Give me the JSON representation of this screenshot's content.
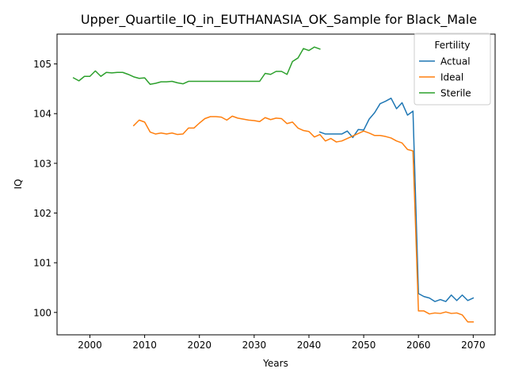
{
  "chart_data": {
    "type": "line",
    "title": "Upper_Quartile_IQ_in_EUTHANASIA_OK_Sample for Black_Male",
    "xlabel": "Years",
    "ylabel": "IQ",
    "xlim": [
      1994,
      2074
    ],
    "ylim": [
      99.55,
      105.6
    ],
    "x_ticks": [
      2000,
      2010,
      2020,
      2030,
      2040,
      2050,
      2060,
      2070
    ],
    "y_ticks": [
      100,
      101,
      102,
      103,
      104,
      105
    ],
    "grid": false,
    "legend": {
      "title": "Fertility",
      "placement": "top-right"
    },
    "series": [
      {
        "name": "Actual",
        "color": "#1f77b4",
        "x": [
          2042,
          2043,
          2044,
          2045,
          2046,
          2047,
          2048,
          2049,
          2050,
          2051,
          2052,
          2053,
          2054,
          2055,
          2056,
          2057,
          2058,
          2059,
          2060,
          2061,
          2062,
          2063,
          2064,
          2065,
          2066,
          2067,
          2068,
          2069,
          2070
        ],
        "y": [
          103.63,
          103.59,
          103.59,
          103.59,
          103.59,
          103.65,
          103.52,
          103.68,
          103.67,
          103.89,
          104.02,
          104.2,
          104.25,
          104.31,
          104.1,
          104.22,
          103.97,
          104.05,
          100.38,
          100.32,
          100.29,
          100.22,
          100.26,
          100.22,
          100.35,
          100.24,
          100.35,
          100.24,
          100.29
        ]
      },
      {
        "name": "Ideal",
        "color": "#ff7f0e",
        "x": [
          2008,
          2009,
          2010,
          2011,
          2012,
          2013,
          2014,
          2015,
          2016,
          2017,
          2018,
          2019,
          2020,
          2021,
          2022,
          2023,
          2024,
          2025,
          2026,
          2027,
          2028,
          2029,
          2030,
          2031,
          2032,
          2033,
          2034,
          2035,
          2036,
          2037,
          2038,
          2039,
          2040,
          2041,
          2042,
          2043,
          2044,
          2045,
          2046,
          2047,
          2048,
          2049,
          2050,
          2051,
          2052,
          2053,
          2054,
          2055,
          2056,
          2057,
          2058,
          2059,
          2060,
          2061,
          2062,
          2063,
          2064,
          2065,
          2066,
          2067,
          2068,
          2069,
          2070
        ],
        "y": [
          103.76,
          103.87,
          103.83,
          103.63,
          103.59,
          103.61,
          103.59,
          103.61,
          103.58,
          103.59,
          103.71,
          103.71,
          103.81,
          103.9,
          103.94,
          103.94,
          103.93,
          103.87,
          103.95,
          103.91,
          103.89,
          103.87,
          103.86,
          103.84,
          103.92,
          103.88,
          103.91,
          103.9,
          103.8,
          103.83,
          103.71,
          103.66,
          103.64,
          103.53,
          103.58,
          103.45,
          103.5,
          103.43,
          103.45,
          103.5,
          103.55,
          103.6,
          103.65,
          103.61,
          103.56,
          103.56,
          103.54,
          103.51,
          103.45,
          103.41,
          103.28,
          103.25,
          100.03,
          100.03,
          99.97,
          99.99,
          99.98,
          100.01,
          99.98,
          99.99,
          99.95,
          99.81,
          99.81
        ]
      },
      {
        "name": "Sterile",
        "color": "#2ca02c",
        "x": [
          1997,
          1998,
          1999,
          2000,
          2001,
          2002,
          2003,
          2004,
          2005,
          2006,
          2007,
          2008,
          2009,
          2010,
          2011,
          2012,
          2013,
          2014,
          2015,
          2016,
          2017,
          2018,
          2019,
          2020,
          2021,
          2022,
          2023,
          2024,
          2025,
          2026,
          2027,
          2028,
          2029,
          2030,
          2031,
          2032,
          2033,
          2034,
          2035,
          2036,
          2037,
          2038,
          2039,
          2040,
          2041,
          2042
        ],
        "y": [
          104.72,
          104.66,
          104.75,
          104.75,
          104.86,
          104.75,
          104.83,
          104.82,
          104.83,
          104.83,
          104.79,
          104.74,
          104.71,
          104.72,
          104.59,
          104.61,
          104.64,
          104.64,
          104.65,
          104.62,
          104.6,
          104.65,
          104.65,
          104.65,
          104.65,
          104.65,
          104.65,
          104.65,
          104.65,
          104.65,
          104.65,
          104.65,
          104.65,
          104.65,
          104.65,
          104.81,
          104.79,
          104.85,
          104.85,
          104.79,
          105.05,
          105.12,
          105.31,
          105.27,
          105.34,
          105.3
        ]
      }
    ]
  }
}
